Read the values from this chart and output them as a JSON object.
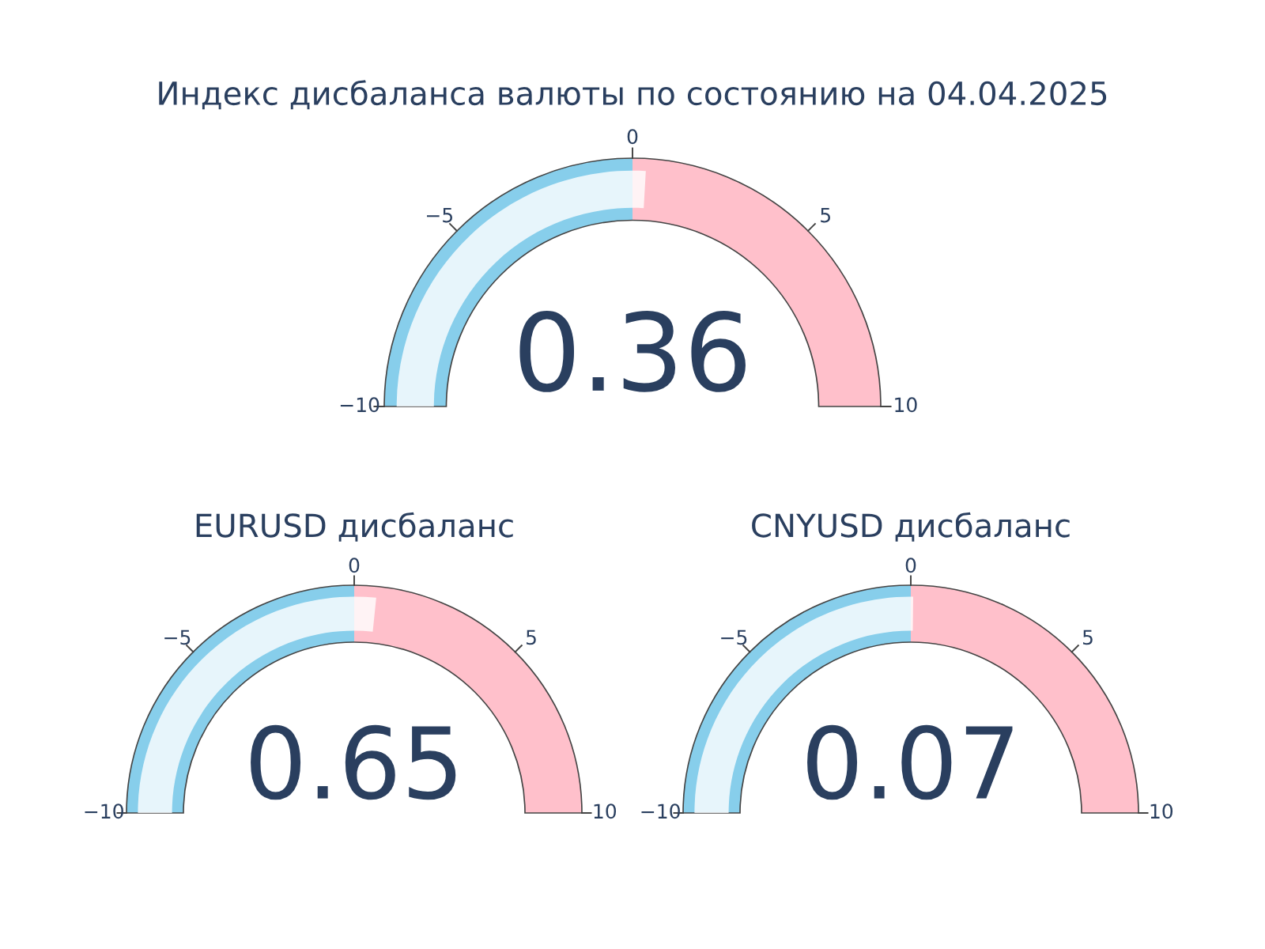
{
  "chart_data": [
    {
      "type": "other",
      "title": "Индекс дисбаланса валюты по состоянию на 04.04.2025",
      "values": [
        0.36
      ],
      "color": "#ffffff",
      "data_labels": true,
      "annotations": [
        "−10",
        "−5",
        "0",
        "5",
        "10"
      ]
    },
    {
      "type": "other",
      "title": "EURUSD дисбаланс",
      "values": [
        0.65
      ],
      "color": "#ffffff",
      "data_labels": true,
      "annotations": [
        "−10",
        "−5",
        "0",
        "5",
        "10"
      ]
    },
    {
      "type": "other",
      "title": "CNYUSD дисбаланс",
      "values": [
        0.07
      ],
      "color": "#ffffff",
      "data_labels": true,
      "annotations": [
        "−10",
        "−5",
        "0",
        "5",
        "10"
      ]
    }
  ]
}
